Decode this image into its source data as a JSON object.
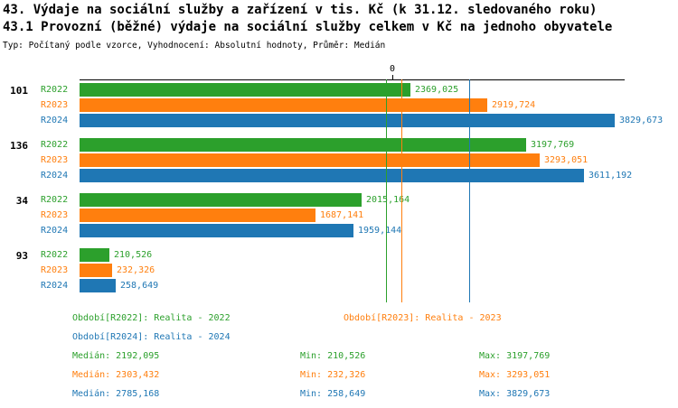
{
  "chart_data": {
    "type": "bar",
    "orientation": "horizontal",
    "title": "43. Výdaje na sociální služby a zařízení v tis. Kč (k 31.12. sledovaného roku)",
    "subtitle": "43.1 Provozní (běžné) výdaje na sociální služby celkem v Kč na jednoho obyvatele",
    "note": "Typ: Počítaný podle vzorce, Vyhodnocení: Absolutní hodnoty, Průměr: Medián",
    "value_axis": {
      "zero_label": "0",
      "min": 0,
      "max": 3829.673,
      "grid": false
    },
    "legend_position": "bottom",
    "categories": [
      "101",
      "136",
      "34",
      "93"
    ],
    "series": [
      {
        "name": "R2022",
        "color": "#2ca02c",
        "values": [
          2369.025,
          3197.769,
          2015.164,
          210.526
        ],
        "median": 2192.095
      },
      {
        "name": "R2023",
        "color": "#ff7f0e",
        "values": [
          2919.724,
          3293.051,
          1687.141,
          232.326
        ],
        "median": 2303.432
      },
      {
        "name": "R2024",
        "color": "#1f77b4",
        "values": [
          3829.673,
          3611.192,
          1959.144,
          258.649
        ],
        "median": 2785.168
      }
    ]
  },
  "legend": {
    "items": [
      {
        "label": "Období[R2022]: Realita - 2022",
        "color": "#2ca02c"
      },
      {
        "label": "Období[R2023]: Realita - 2023",
        "color": "#ff7f0e"
      },
      {
        "label": "Období[R2024]: Realita - 2024",
        "color": "#1f77b4"
      }
    ]
  },
  "stats": {
    "rows": [
      {
        "median": "Medián: 2192,095",
        "min": "Min: 210,526",
        "max": "Max: 3197,769",
        "color": "#2ca02c"
      },
      {
        "median": "Medián: 2303,432",
        "min": "Min: 232,326",
        "max": "Max: 3293,051",
        "color": "#ff7f0e"
      },
      {
        "median": "Medián: 2785,168",
        "min": "Min: 258,649",
        "max": "Max: 3829,673",
        "color": "#1f77b4"
      }
    ]
  }
}
